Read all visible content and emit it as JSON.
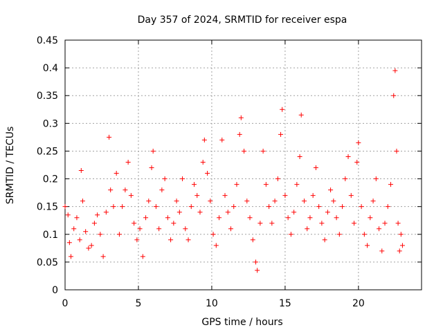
{
  "chart_data": {
    "type": "scatter",
    "title": "Day 357 of 2024, SRMTID for receiver espa",
    "xlabel": "GPS time / hours",
    "ylabel": "SRMTID / TECUs",
    "xlim": [
      0,
      24.3
    ],
    "ylim": [
      0,
      0.45
    ],
    "xticks": [
      0,
      5,
      10,
      15,
      20
    ],
    "yticks": [
      0,
      0.05,
      0.1,
      0.15,
      0.2,
      0.25,
      0.3,
      0.35,
      0.4,
      0.45
    ],
    "xtick_labels": [
      "0",
      "5",
      "10",
      "15",
      "20"
    ],
    "ytick_labels": [
      "0",
      "0.05",
      "0.1",
      "0.15",
      "0.2",
      "0.25",
      "0.3",
      "0.35",
      "0.4",
      "0.45"
    ],
    "grid": true,
    "marker": "+",
    "series_color": "#ff0000",
    "series": [
      {
        "name": "SRMTID",
        "points": [
          [
            0.0,
            0.15
          ],
          [
            0.2,
            0.135
          ],
          [
            0.3,
            0.085
          ],
          [
            0.4,
            0.06
          ],
          [
            0.6,
            0.11
          ],
          [
            0.8,
            0.13
          ],
          [
            1.0,
            0.09
          ],
          [
            1.1,
            0.215
          ],
          [
            1.2,
            0.16
          ],
          [
            1.4,
            0.105
          ],
          [
            1.6,
            0.075
          ],
          [
            1.8,
            0.08
          ],
          [
            2.0,
            0.12
          ],
          [
            2.2,
            0.135
          ],
          [
            2.4,
            0.1
          ],
          [
            2.6,
            0.06
          ],
          [
            2.8,
            0.14
          ],
          [
            3.0,
            0.275
          ],
          [
            3.1,
            0.18
          ],
          [
            3.3,
            0.15
          ],
          [
            3.5,
            0.21
          ],
          [
            3.7,
            0.1
          ],
          [
            3.9,
            0.15
          ],
          [
            4.1,
            0.18
          ],
          [
            4.3,
            0.23
          ],
          [
            4.5,
            0.17
          ],
          [
            4.7,
            0.12
          ],
          [
            4.9,
            0.09
          ],
          [
            5.1,
            0.11
          ],
          [
            5.3,
            0.06
          ],
          [
            5.5,
            0.13
          ],
          [
            5.7,
            0.16
          ],
          [
            5.9,
            0.22
          ],
          [
            6.0,
            0.25
          ],
          [
            6.2,
            0.15
          ],
          [
            6.4,
            0.11
          ],
          [
            6.6,
            0.18
          ],
          [
            6.8,
            0.2
          ],
          [
            7.0,
            0.13
          ],
          [
            7.2,
            0.09
          ],
          [
            7.4,
            0.12
          ],
          [
            7.6,
            0.16
          ],
          [
            7.8,
            0.14
          ],
          [
            8.0,
            0.2
          ],
          [
            8.2,
            0.11
          ],
          [
            8.4,
            0.09
          ],
          [
            8.6,
            0.15
          ],
          [
            8.8,
            0.19
          ],
          [
            9.0,
            0.17
          ],
          [
            9.2,
            0.14
          ],
          [
            9.4,
            0.23
          ],
          [
            9.5,
            0.27
          ],
          [
            9.7,
            0.21
          ],
          [
            9.9,
            0.16
          ],
          [
            10.1,
            0.1
          ],
          [
            10.3,
            0.08
          ],
          [
            10.5,
            0.13
          ],
          [
            10.7,
            0.27
          ],
          [
            10.9,
            0.17
          ],
          [
            11.1,
            0.14
          ],
          [
            11.3,
            0.11
          ],
          [
            11.5,
            0.15
          ],
          [
            11.7,
            0.19
          ],
          [
            11.9,
            0.28
          ],
          [
            12.0,
            0.31
          ],
          [
            12.2,
            0.25
          ],
          [
            12.4,
            0.16
          ],
          [
            12.6,
            0.13
          ],
          [
            12.8,
            0.09
          ],
          [
            13.0,
            0.05
          ],
          [
            13.1,
            0.035
          ],
          [
            13.3,
            0.12
          ],
          [
            13.5,
            0.25
          ],
          [
            13.7,
            0.19
          ],
          [
            13.9,
            0.15
          ],
          [
            14.1,
            0.12
          ],
          [
            14.3,
            0.16
          ],
          [
            14.5,
            0.2
          ],
          [
            14.7,
            0.28
          ],
          [
            14.8,
            0.325
          ],
          [
            15.0,
            0.17
          ],
          [
            15.2,
            0.13
          ],
          [
            15.4,
            0.1
          ],
          [
            15.6,
            0.14
          ],
          [
            15.8,
            0.19
          ],
          [
            16.0,
            0.24
          ],
          [
            16.1,
            0.315
          ],
          [
            16.3,
            0.16
          ],
          [
            16.5,
            0.11
          ],
          [
            16.7,
            0.13
          ],
          [
            16.9,
            0.17
          ],
          [
            17.1,
            0.22
          ],
          [
            17.3,
            0.15
          ],
          [
            17.5,
            0.12
          ],
          [
            17.7,
            0.09
          ],
          [
            17.9,
            0.14
          ],
          [
            18.1,
            0.18
          ],
          [
            18.3,
            0.16
          ],
          [
            18.5,
            0.13
          ],
          [
            18.7,
            0.1
          ],
          [
            18.9,
            0.15
          ],
          [
            19.1,
            0.2
          ],
          [
            19.3,
            0.24
          ],
          [
            19.5,
            0.17
          ],
          [
            19.7,
            0.12
          ],
          [
            19.9,
            0.23
          ],
          [
            20.0,
            0.265
          ],
          [
            20.2,
            0.15
          ],
          [
            20.4,
            0.1
          ],
          [
            20.6,
            0.08
          ],
          [
            20.8,
            0.13
          ],
          [
            21.0,
            0.16
          ],
          [
            21.2,
            0.2
          ],
          [
            21.4,
            0.11
          ],
          [
            21.6,
            0.07
          ],
          [
            21.8,
            0.12
          ],
          [
            22.0,
            0.15
          ],
          [
            22.2,
            0.19
          ],
          [
            22.4,
            0.35
          ],
          [
            22.5,
            0.395
          ],
          [
            22.6,
            0.25
          ],
          [
            22.7,
            0.12
          ],
          [
            22.8,
            0.07
          ],
          [
            22.9,
            0.1
          ],
          [
            23.0,
            0.08
          ]
        ]
      }
    ]
  }
}
